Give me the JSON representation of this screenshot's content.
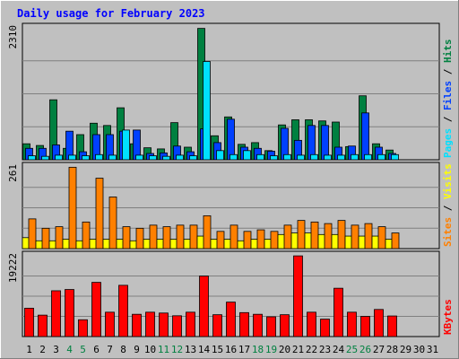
{
  "chart_data": {
    "type": "bar",
    "title": "Daily usage for February 2023",
    "x": [
      "1",
      "2",
      "3",
      "4",
      "5",
      "6",
      "7",
      "8",
      "9",
      "10",
      "11",
      "12",
      "13",
      "14",
      "15",
      "16",
      "17",
      "18",
      "19",
      "20",
      "21",
      "22",
      "23",
      "24",
      "25",
      "26",
      "27",
      "28",
      "29",
      "30",
      "31"
    ],
    "weekend_days": [
      "4",
      "5",
      "11",
      "12",
      "18",
      "19",
      "25",
      "26"
    ],
    "panels": [
      {
        "id": "hits",
        "ymax_label": "2310",
        "ymax": 2310,
        "legend": [
          "Pages",
          "Files",
          "Hits"
        ],
        "series": [
          {
            "name": "Hits",
            "color": "#008040",
            "values": [
              280,
              250,
              1050,
              200,
              440,
              640,
              600,
              910,
              280,
              210,
              190,
              650,
              220,
              2300,
              420,
              750,
              270,
              300,
              160,
              610,
              700,
              700,
              680,
              660,
              230,
              1120,
              280,
              170,
              0,
              0,
              0
            ]
          },
          {
            "name": "Files",
            "color": "#0040ff",
            "values": [
              200,
              200,
              260,
              500,
              140,
              440,
              440,
              500,
              520,
              110,
              120,
              240,
              140,
              540,
              300,
              710,
              220,
              200,
              150,
              550,
              340,
              600,
              600,
              220,
              240,
              820,
              220,
              110,
              0,
              0,
              0
            ]
          },
          {
            "name": "Pages",
            "color": "#00e0ff",
            "values": [
              70,
              60,
              80,
              80,
              70,
              90,
              80,
              520,
              80,
              70,
              60,
              80,
              70,
              1720,
              160,
              90,
              160,
              90,
              70,
              90,
              80,
              90,
              80,
              80,
              90,
              90,
              90,
              90,
              0,
              0,
              0
            ]
          }
        ]
      },
      {
        "id": "visits",
        "ymax_label": "261",
        "ymax": 261,
        "legend": [
          "Sites",
          "Visits"
        ],
        "series": [
          {
            "name": "Visits",
            "color": "#ffff00",
            "values": [
              35,
              25,
              25,
              30,
              25,
              30,
              30,
              30,
              25,
              30,
              30,
              30,
              30,
              40,
              30,
              30,
              25,
              30,
              30,
              45,
              50,
              50,
              45,
              45,
              40,
              40,
              40,
              30,
              0,
              0,
              0
            ]
          },
          {
            "name": "Sites",
            "color": "#ff8000",
            "values": [
              95,
              65,
              70,
              260,
              85,
              225,
              165,
              70,
              65,
              75,
              70,
              75,
              75,
              105,
              55,
              75,
              55,
              60,
              55,
              75,
              90,
              85,
              80,
              90,
              75,
              80,
              70,
              50,
              0,
              0,
              0
            ]
          }
        ]
      },
      {
        "id": "kbytes",
        "ymax_label": "19222",
        "ymax": 19222,
        "legend": [
          "KBytes"
        ],
        "series": [
          {
            "name": "KBytes",
            "color": "#ff0000",
            "values": [
              6750,
              5100,
              10900,
              11200,
              4000,
              12900,
              5800,
              12200,
              5300,
              5800,
              5600,
              4950,
              5800,
              14400,
              5200,
              8200,
              5700,
              5300,
              4700,
              5200,
              19200,
              5800,
              4150,
              11500,
              5800,
              4800,
              6450,
              4900,
              0,
              0,
              0
            ]
          }
        ]
      }
    ]
  }
}
